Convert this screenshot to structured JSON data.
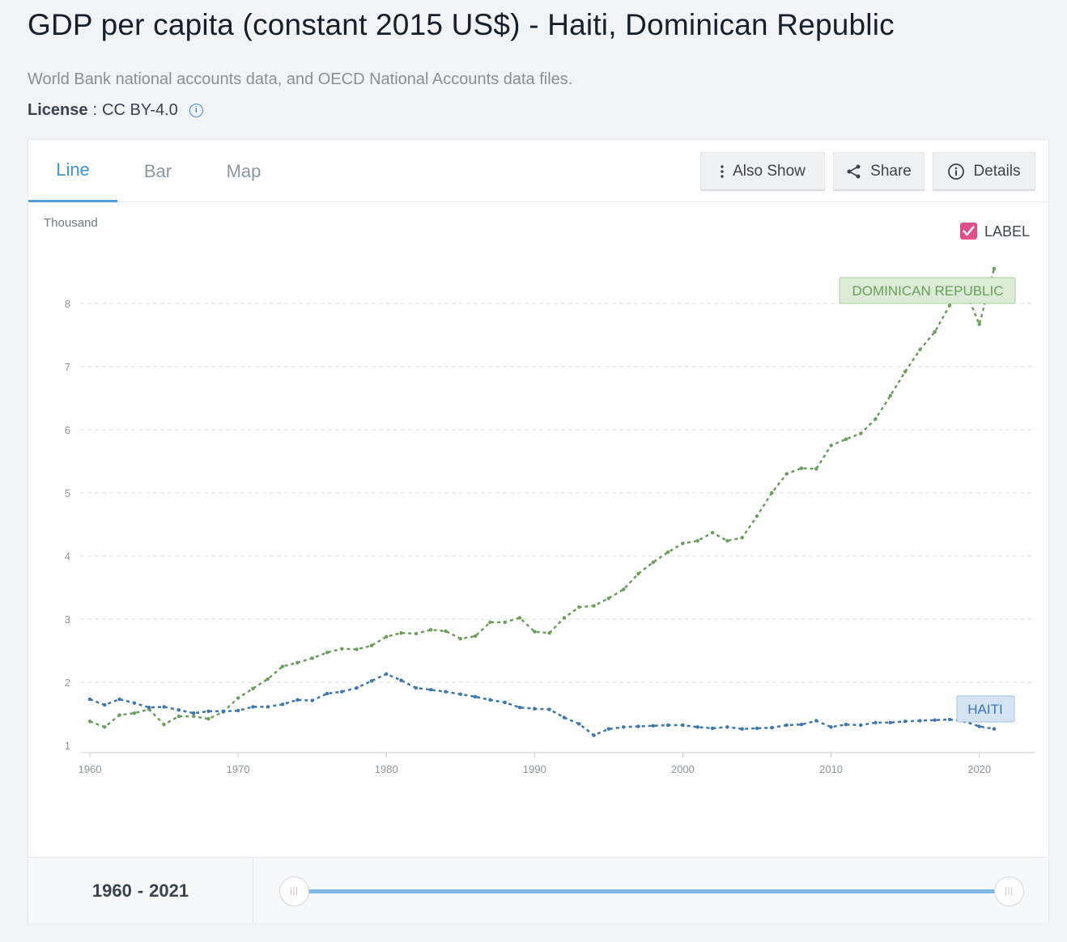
{
  "page": {
    "title": "GDP per capita (constant 2015 US$) - Haiti, Dominican Republic",
    "source": "World Bank national accounts data, and OECD National Accounts data files.",
    "license_label": "License",
    "license_sep": ":",
    "license_value": "CC BY-4.0",
    "info_icon": "i"
  },
  "tabs": [
    {
      "label": "Line",
      "active": true
    },
    {
      "label": "Bar",
      "active": false
    },
    {
      "label": "Map",
      "active": false
    }
  ],
  "buttons": {
    "also_show": "Also Show",
    "share": "Share",
    "details": "Details"
  },
  "label_toggle": {
    "text": "LABEL",
    "checked": true
  },
  "footer": {
    "range_start": "1960",
    "range_sep": "-",
    "range_end": "2021"
  },
  "colors": {
    "dominican": "#6a9e5d",
    "haiti": "#3e76ae",
    "dominican_label_bg": "#dcebd6",
    "haiti_label_bg": "#d5e4f3",
    "checkbox": "#e0508c",
    "accent": "#3d95d8"
  },
  "chart_data": {
    "type": "line",
    "ylabel": "Thousand",
    "xlim": [
      1960,
      2021
    ],
    "ylim": [
      1,
      8.6
    ],
    "yticks": [
      "1",
      "2",
      "3",
      "4",
      "5",
      "6",
      "7",
      "8"
    ],
    "xticks": [
      "1960",
      "1970",
      "1980",
      "1990",
      "2000",
      "2010",
      "2020"
    ],
    "grid": true,
    "x": [
      1960,
      1961,
      1962,
      1963,
      1964,
      1965,
      1966,
      1967,
      1968,
      1969,
      1970,
      1971,
      1972,
      1973,
      1974,
      1975,
      1976,
      1977,
      1978,
      1979,
      1980,
      1981,
      1982,
      1983,
      1984,
      1985,
      1986,
      1987,
      1988,
      1989,
      1990,
      1991,
      1992,
      1993,
      1994,
      1995,
      1996,
      1997,
      1998,
      1999,
      2000,
      2001,
      2002,
      2003,
      2004,
      2005,
      2006,
      2007,
      2008,
      2009,
      2010,
      2011,
      2012,
      2013,
      2014,
      2015,
      2016,
      2017,
      2018,
      2019,
      2020,
      2021
    ],
    "series": [
      {
        "name": "DOMINICAN REPUBLIC",
        "values": [
          1.38,
          1.29,
          1.48,
          1.51,
          1.57,
          1.33,
          1.46,
          1.46,
          1.42,
          1.53,
          1.75,
          1.9,
          2.05,
          2.25,
          2.31,
          2.38,
          2.47,
          2.53,
          2.52,
          2.58,
          2.72,
          2.78,
          2.77,
          2.83,
          2.81,
          2.69,
          2.73,
          2.95,
          2.95,
          3.02,
          2.8,
          2.78,
          3.02,
          3.19,
          3.21,
          3.33,
          3.47,
          3.72,
          3.9,
          4.06,
          4.2,
          4.24,
          4.37,
          4.24,
          4.29,
          4.63,
          5.0,
          5.3,
          5.39,
          5.38,
          5.75,
          5.85,
          5.94,
          6.17,
          6.54,
          6.92,
          7.27,
          7.55,
          7.97,
          8.24,
          7.67,
          8.55
        ]
      },
      {
        "name": "HAITI",
        "values": [
          1.73,
          1.64,
          1.73,
          1.67,
          1.6,
          1.61,
          1.56,
          1.51,
          1.54,
          1.54,
          1.55,
          1.61,
          1.61,
          1.65,
          1.72,
          1.71,
          1.82,
          1.85,
          1.91,
          2.02,
          2.13,
          2.03,
          1.91,
          1.88,
          1.85,
          1.81,
          1.77,
          1.72,
          1.68,
          1.6,
          1.58,
          1.57,
          1.44,
          1.34,
          1.16,
          1.26,
          1.29,
          1.3,
          1.31,
          1.32,
          1.32,
          1.29,
          1.27,
          1.29,
          1.26,
          1.27,
          1.28,
          1.32,
          1.33,
          1.39,
          1.29,
          1.33,
          1.32,
          1.36,
          1.36,
          1.38,
          1.39,
          1.4,
          1.41,
          1.38,
          1.3,
          1.26
        ]
      }
    ]
  }
}
